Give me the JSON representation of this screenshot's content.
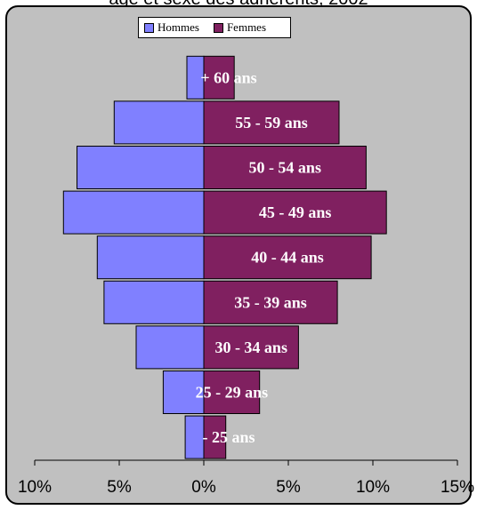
{
  "title_partial": "age et sexe des adhérents, 2002",
  "colors": {
    "men": "#8080ff",
    "women": "#802060",
    "background": "#c0c0c0"
  },
  "chart_data": {
    "type": "bar",
    "orientation": "horizontal",
    "layout": "population-pyramid",
    "categories": [
      "+ 60 ans",
      "55 - 59 ans",
      "50 - 54 ans",
      "45 - 49 ans",
      "40 - 44 ans",
      "35 - 39 ans",
      "30 - 34 ans",
      "25 - 29 ans",
      "- 25 ans"
    ],
    "series": [
      {
        "name": "Hommes",
        "side": "left",
        "values": [
          1.0,
          5.3,
          7.5,
          8.3,
          6.3,
          5.9,
          4.0,
          2.4,
          1.1
        ]
      },
      {
        "name": "Femmes",
        "side": "right",
        "values": [
          1.8,
          8.0,
          9.6,
          10.8,
          9.9,
          7.9,
          5.6,
          3.3,
          1.3
        ]
      }
    ],
    "xlim": [
      -10,
      15
    ],
    "x_ticks": [
      -10,
      -5,
      0,
      5,
      10,
      15
    ],
    "x_tick_labels": [
      "10%",
      "5%",
      "0%",
      "5%",
      "10%",
      "15%"
    ],
    "legend_position": "top-center",
    "grid": false
  }
}
